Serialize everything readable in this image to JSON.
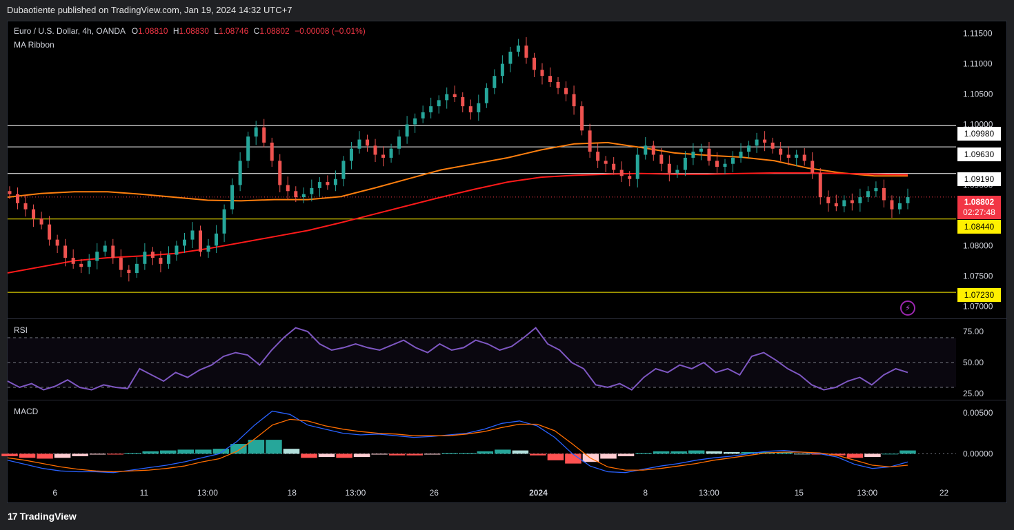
{
  "header": {
    "published": "Dubaotiente published on TradingView.com, Jan 19, 2024 14:32 UTC+7"
  },
  "legend": {
    "symbol": "Euro / U.S. Dollar, 4h, OANDA",
    "o_label": "O",
    "o": "1.08810",
    "h_label": "H",
    "h": "1.08830",
    "l_label": "L",
    "l": "1.08746",
    "c_label": "C",
    "c": "1.08802",
    "change": "−0.00008 (−0.01%)",
    "indicator": "MA Ribbon"
  },
  "panes": {
    "rsi_label": "RSI",
    "macd_label": "MACD"
  },
  "footer": {
    "logo_text": "TradingView",
    "logo_mark": "17"
  },
  "level_tags": [
    {
      "value": "1.09980",
      "style": "white"
    },
    {
      "value": "1.09630",
      "style": "white"
    },
    {
      "value": "1.09190",
      "style": "white"
    },
    {
      "value": "1.08440",
      "style": "yellow"
    },
    {
      "value": "1.07230",
      "style": "yellow"
    }
  ],
  "last_price": {
    "value": "1.08802",
    "countdown": "02:27:48"
  },
  "colors": {
    "up": "#26a69a",
    "down": "#ef5350",
    "ma_fast": "#ff7f0e",
    "ma_slow": "#ff1a1a",
    "rsi": "#7e57c2",
    "macd": "#2962ff",
    "signal": "#ff6d00"
  },
  "chart_data": [
    {
      "type": "line",
      "title": "Euro / U.S. Dollar, 4h, OANDA",
      "subtitle": "MA Ribbon",
      "ylim": [
        1.068,
        1.117
      ],
      "y_ticks": [
        "1.11500",
        "1.11000",
        "1.10500",
        "1.10000",
        "1.09500",
        "1.09000",
        "1.08500",
        "1.08000",
        "1.07500",
        "1.07000"
      ],
      "y_tick_values": [
        1.115,
        1.11,
        1.105,
        1.1,
        1.095,
        1.09,
        1.085,
        1.08,
        1.075,
        1.07
      ],
      "x_ticks": [
        "6",
        "11",
        "13:00",
        "18",
        "13:00",
        "26",
        "2024",
        "8",
        "13:00",
        "15",
        "13:00",
        "22"
      ],
      "x_tick_pos": [
        0.05,
        0.144,
        0.211,
        0.3,
        0.367,
        0.45,
        0.56,
        0.673,
        0.74,
        0.835,
        0.907,
        0.988
      ],
      "close_series": [
        1.0885,
        1.087,
        1.086,
        1.0845,
        1.0835,
        1.081,
        1.08,
        1.078,
        1.077,
        1.0765,
        1.0775,
        1.079,
        1.08,
        1.078,
        1.076,
        1.0755,
        1.077,
        1.079,
        1.078,
        1.077,
        1.0785,
        1.08,
        1.081,
        1.0825,
        1.079,
        1.08,
        1.082,
        1.086,
        1.09,
        1.094,
        1.098,
        1.0995,
        1.097,
        1.094,
        1.09,
        1.089,
        1.088,
        1.0885,
        1.0895,
        1.0905,
        1.09,
        1.091,
        1.094,
        1.096,
        1.0975,
        1.0965,
        1.095,
        1.0945,
        1.096,
        1.098,
        1.1,
        1.101,
        1.102,
        1.103,
        1.104,
        1.105,
        1.1045,
        1.103,
        1.102,
        1.1035,
        1.106,
        1.108,
        1.11,
        1.112,
        1.113,
        1.111,
        1.109,
        1.108,
        1.107,
        1.106,
        1.105,
        1.103,
        1.099,
        1.0955,
        1.094,
        1.0935,
        1.0925,
        1.0915,
        1.091,
        1.095,
        1.0965,
        1.095,
        1.0935,
        1.092,
        1.0925,
        1.0945,
        1.0955,
        1.096,
        1.094,
        1.093,
        1.0935,
        1.0945,
        1.0955,
        1.0965,
        1.0975,
        1.097,
        1.096,
        1.095,
        1.0945,
        1.095,
        1.094,
        1.092,
        1.088,
        1.087,
        1.0865,
        1.0875,
        1.087,
        1.088,
        1.089,
        1.0895,
        1.0875,
        1.086,
        1.087,
        1.088
      ],
      "series": [
        {
          "name": "MA fast",
          "values": [
            1.088,
            1.0886,
            1.0889,
            1.0889,
            1.0885,
            1.088,
            1.0875,
            1.0874,
            1.0876,
            1.0876,
            1.0881,
            1.0895,
            1.091,
            1.0925,
            1.0935,
            1.0945,
            1.0958,
            1.0968,
            1.097,
            1.0962,
            1.0953,
            1.0949,
            1.0946,
            1.094,
            1.0928,
            1.092,
            1.0915,
            1.0915
          ]
        },
        {
          "name": "MA slow",
          "values": [
            1.0755,
            1.0765,
            1.0775,
            1.078,
            1.0783,
            1.0787,
            1.0795,
            1.0805,
            1.0815,
            1.0825,
            1.0838,
            1.0852,
            1.0866,
            1.088,
            1.0893,
            1.0905,
            1.0913,
            1.0916,
            1.0918,
            1.0919,
            1.0918,
            1.0918,
            1.0919,
            1.092,
            1.092,
            1.0919,
            1.0918,
            1.0917
          ]
        }
      ],
      "horizontal_levels": [
        1.0998,
        1.0963,
        1.0919,
        1.0844,
        1.0723
      ]
    },
    {
      "type": "line",
      "title": "RSI",
      "ylim": [
        20,
        85
      ],
      "y_ticks": [
        "75.00",
        "50.00",
        "25.00"
      ],
      "y_tick_values": [
        75,
        50,
        25
      ],
      "bands": [
        30,
        50,
        70
      ],
      "values": [
        35,
        30,
        33,
        28,
        31,
        36,
        30,
        28,
        32,
        30,
        29,
        45,
        40,
        35,
        42,
        38,
        44,
        48,
        55,
        58,
        56,
        48,
        60,
        70,
        78,
        75,
        65,
        60,
        62,
        65,
        62,
        60,
        64,
        68,
        62,
        58,
        65,
        60,
        62,
        68,
        65,
        60,
        63,
        70,
        78,
        65,
        60,
        50,
        45,
        32,
        30,
        33,
        28,
        38,
        45,
        42,
        48,
        45,
        50,
        42,
        45,
        40,
        55,
        58,
        52,
        45,
        40,
        32,
        28,
        30,
        35,
        38,
        32,
        40,
        45,
        42
      ]
    },
    {
      "type": "bar",
      "title": "MACD",
      "ylim": [
        -0.003,
        0.006
      ],
      "y_ticks": [
        "0.00500",
        "0.00000"
      ],
      "y_tick_values": [
        0.005,
        0.0
      ],
      "macd": [
        -0.0008,
        -0.0013,
        -0.0018,
        -0.0021,
        -0.0022,
        -0.0022,
        -0.0023,
        -0.002,
        -0.0017,
        -0.0014,
        -0.001,
        -0.0005,
        0.0,
        0.0015,
        0.0035,
        0.0052,
        0.0048,
        0.0035,
        0.003,
        0.0025,
        0.0023,
        0.0024,
        0.0022,
        0.002,
        0.0021,
        0.0023,
        0.0025,
        0.003,
        0.0037,
        0.004,
        0.0034,
        0.002,
        0.0,
        -0.0015,
        -0.0022,
        -0.0023,
        -0.0019,
        -0.0015,
        -0.0012,
        -0.0008,
        -0.0005,
        -0.0003,
        0.0,
        0.0003,
        0.0004,
        0.0002,
        0.0,
        -0.0004,
        -0.0013,
        -0.0018,
        -0.0016,
        -0.001
      ],
      "signal": [
        -0.0005,
        -0.0008,
        -0.0012,
        -0.0016,
        -0.0019,
        -0.0021,
        -0.0022,
        -0.0021,
        -0.002,
        -0.0018,
        -0.0015,
        -0.001,
        -0.0006,
        0.0003,
        0.0018,
        0.0035,
        0.0042,
        0.004,
        0.0034,
        0.003,
        0.0027,
        0.0025,
        0.0024,
        0.0022,
        0.0022,
        0.0022,
        0.0024,
        0.0027,
        0.0032,
        0.0036,
        0.0036,
        0.0028,
        0.0012,
        -0.0005,
        -0.0016,
        -0.002,
        -0.002,
        -0.0018,
        -0.0015,
        -0.0012,
        -0.0008,
        -0.0005,
        -0.0002,
        0.0001,
        0.0002,
        0.0002,
        0.0001,
        -0.0002,
        -0.0008,
        -0.0014,
        -0.0016,
        -0.0014
      ],
      "histogram": [
        -0.0003,
        -0.0005,
        -0.0006,
        -0.0005,
        -0.0003,
        -0.0001,
        -0.0001,
        0.0001,
        0.0003,
        0.0004,
        0.0005,
        0.0005,
        0.0006,
        0.0012,
        0.0017,
        0.0017,
        0.0006,
        -0.0005,
        -0.0004,
        -0.0005,
        -0.0004,
        -0.0001,
        -0.0002,
        -0.0002,
        -0.0001,
        0.0001,
        0.0001,
        0.0003,
        0.0005,
        0.0004,
        -0.0002,
        -0.0008,
        -0.0012,
        -0.001,
        -0.0006,
        -0.0003,
        0.0001,
        0.0003,
        0.0003,
        0.0004,
        0.0003,
        0.0002,
        0.0002,
        0.0002,
        0.0002,
        0.0,
        -0.0001,
        -0.0002,
        -0.0005,
        -0.0004,
        0.0,
        0.0004
      ]
    }
  ]
}
